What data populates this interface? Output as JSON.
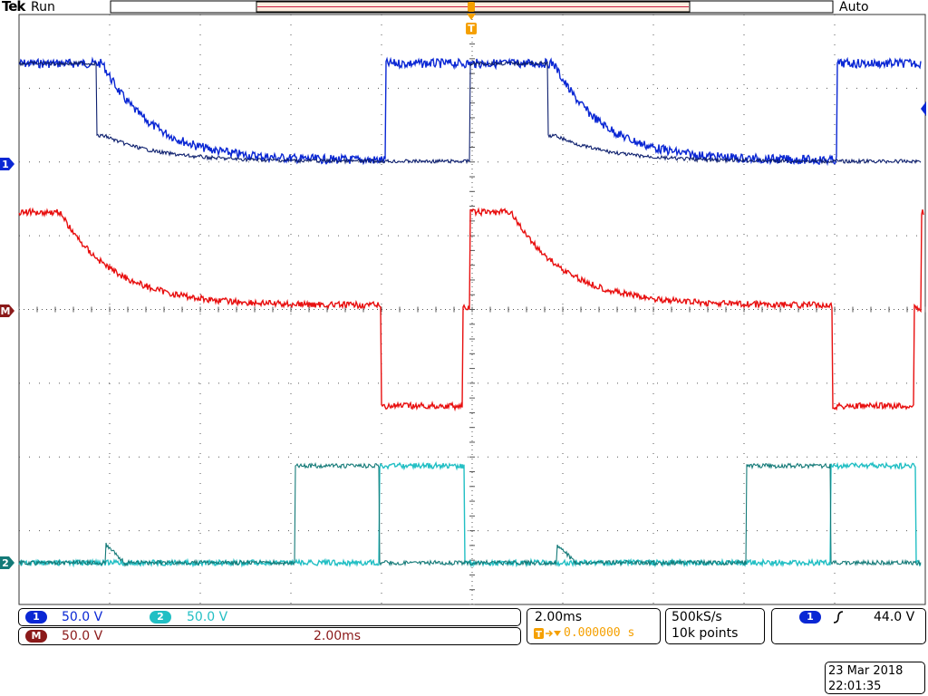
{
  "header": {
    "brand": "Tek",
    "acquisition_state": "Run",
    "trigger_mode": "Auto"
  },
  "markers": {
    "trigger_marker": "T",
    "ch1_marker": "1",
    "ch2_marker": "2",
    "math_marker": "M"
  },
  "colors": {
    "ch1": "#0a27d4",
    "ch1_dark": "#0d1f6e",
    "ch2": "#22bfc4",
    "ch2_dark": "#147a78",
    "math": "#e81010",
    "trigger": "#f5a000",
    "math_badge": "#8b1a1a"
  },
  "status_bar": {
    "ch1_badge": "1",
    "ch1_scale": "50.0 V",
    "ch2_badge": "2",
    "ch2_scale": "50.0 V",
    "math_badge": "M",
    "math_scale": "50.0 V",
    "math_timebase": "2.00ms",
    "timebase": "2.00ms",
    "trigger_position": "0.000000 s",
    "sample_rate": "500kS/s",
    "record_length": "10k points",
    "trigger_source_badge": "1",
    "trigger_slope_icon": "rising-edge-icon",
    "trigger_level": "44.0 V",
    "date": "23 Mar  2018",
    "time": "22:01:35"
  }
}
